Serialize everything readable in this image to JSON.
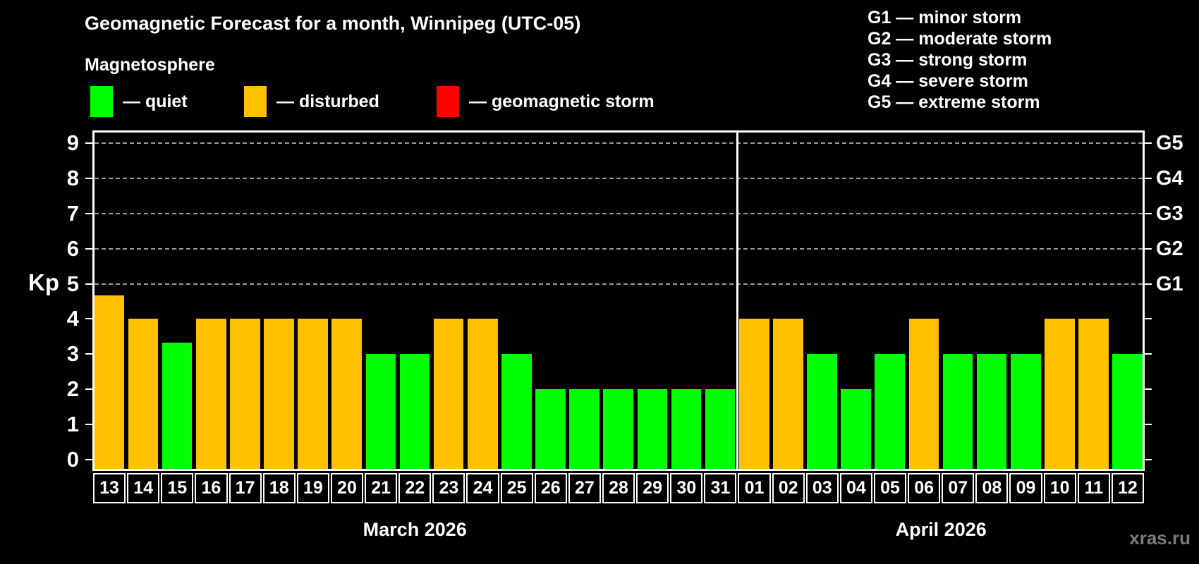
{
  "header": {
    "title": "Geomagnetic Forecast for a month, Winnipeg (UTC-05)",
    "subtitle": "Magnetosphere"
  },
  "legend": {
    "items": [
      {
        "key": "quiet",
        "label": "— quiet",
        "color": "#00ff00"
      },
      {
        "key": "disturbed",
        "label": "— disturbed",
        "color": "#ffc000"
      },
      {
        "key": "storm",
        "label": "— geomagnetic storm",
        "color": "#ff0000"
      }
    ]
  },
  "g_legend": {
    "items": [
      "G1 — minor storm",
      "G2 — moderate storm",
      "G3 — strong storm",
      "G4 — severe storm",
      "G5 — extreme storm"
    ]
  },
  "watermark": "xras.ru",
  "chart_data": {
    "type": "bar",
    "ylabel": "Kp",
    "ylim": [
      0,
      9
    ],
    "yticks": [
      0,
      1,
      2,
      3,
      4,
      5,
      6,
      7,
      8,
      9
    ],
    "gridlines_kp": [
      5,
      6,
      7,
      8,
      9
    ],
    "grid": "dashed, only at G-storm levels 5-9",
    "legend_position": "top",
    "right_axis": [
      {
        "label": "G5",
        "kp": 9
      },
      {
        "label": "G4",
        "kp": 8
      },
      {
        "label": "G3",
        "kp": 7
      },
      {
        "label": "G2",
        "kp": 6
      },
      {
        "label": "G1",
        "kp": 5
      }
    ],
    "months": [
      {
        "label": "March 2026",
        "days": 19
      },
      {
        "label": "April 2026",
        "days": 12
      }
    ],
    "colors": {
      "quiet": "#00ff00",
      "disturbed": "#ffc000",
      "storm": "#ff0000"
    },
    "bars": [
      {
        "day": "13",
        "value": 4.67,
        "status": "disturbed"
      },
      {
        "day": "14",
        "value": 4,
        "status": "disturbed"
      },
      {
        "day": "15",
        "value": 3.33,
        "status": "quiet"
      },
      {
        "day": "16",
        "value": 4,
        "status": "disturbed"
      },
      {
        "day": "17",
        "value": 4,
        "status": "disturbed"
      },
      {
        "day": "18",
        "value": 4,
        "status": "disturbed"
      },
      {
        "day": "19",
        "value": 4,
        "status": "disturbed"
      },
      {
        "day": "20",
        "value": 4,
        "status": "disturbed"
      },
      {
        "day": "21",
        "value": 3,
        "status": "quiet"
      },
      {
        "day": "22",
        "value": 3,
        "status": "quiet"
      },
      {
        "day": "23",
        "value": 4,
        "status": "disturbed"
      },
      {
        "day": "24",
        "value": 4,
        "status": "disturbed"
      },
      {
        "day": "25",
        "value": 3,
        "status": "quiet"
      },
      {
        "day": "26",
        "value": 2,
        "status": "quiet"
      },
      {
        "day": "27",
        "value": 2,
        "status": "quiet"
      },
      {
        "day": "28",
        "value": 2,
        "status": "quiet"
      },
      {
        "day": "29",
        "value": 2,
        "status": "quiet"
      },
      {
        "day": "30",
        "value": 2,
        "status": "quiet"
      },
      {
        "day": "31",
        "value": 2,
        "status": "quiet"
      },
      {
        "day": "01",
        "value": 4,
        "status": "disturbed"
      },
      {
        "day": "02",
        "value": 4,
        "status": "disturbed"
      },
      {
        "day": "03",
        "value": 3,
        "status": "quiet"
      },
      {
        "day": "04",
        "value": 2,
        "status": "quiet"
      },
      {
        "day": "05",
        "value": 3,
        "status": "quiet"
      },
      {
        "day": "06",
        "value": 4,
        "status": "disturbed"
      },
      {
        "day": "07",
        "value": 3,
        "status": "quiet"
      },
      {
        "day": "08",
        "value": 3,
        "status": "quiet"
      },
      {
        "day": "09",
        "value": 3,
        "status": "quiet"
      },
      {
        "day": "10",
        "value": 4,
        "status": "disturbed"
      },
      {
        "day": "11",
        "value": 4,
        "status": "disturbed"
      },
      {
        "day": "12",
        "value": 3,
        "status": "quiet"
      }
    ]
  }
}
